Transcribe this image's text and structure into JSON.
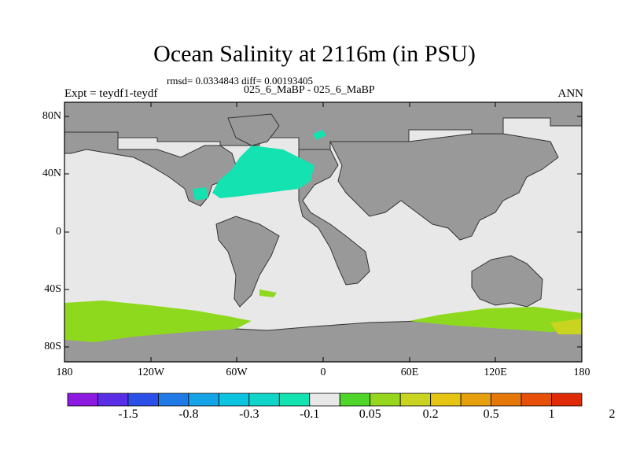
{
  "title": "Ocean Salinity at 2116m (in PSU)",
  "stats": "rmsd= 0.0334843 diff= 0.00193405",
  "subtitle": "025_6_MaBP - 025_6_MaBP",
  "experiment": "Expt = teydf1-teydf",
  "season": "ANN",
  "lat_labels": [
    "80N",
    "40N",
    "0",
    "40S",
    "80S"
  ],
  "lon_labels": [
    "180",
    "120W",
    "60W",
    "0",
    "60E",
    "120E",
    "180"
  ],
  "colorbar": {
    "colors": [
      "#8c1ae0",
      "#5a2ee6",
      "#2b50e8",
      "#1f7ae8",
      "#14a3e6",
      "#0cc4e0",
      "#0fd6c8",
      "#14e2b0",
      "#e8e8e8",
      "#4ed62a",
      "#96d61e",
      "#c8d420",
      "#e6c414",
      "#e6a00e",
      "#e6780a",
      "#e65008",
      "#e02a06"
    ],
    "labels": [
      "-1.5",
      "-0.8",
      "-0.3",
      "-0.1",
      "0.05",
      "0.2",
      "0.5",
      "1",
      "2"
    ]
  },
  "colors": {
    "land": "#999999",
    "ocean_neutral": "#e8e8e8",
    "atlantic_anomaly": "#14e2b0",
    "southern_anomaly": "#8ed91e"
  }
}
